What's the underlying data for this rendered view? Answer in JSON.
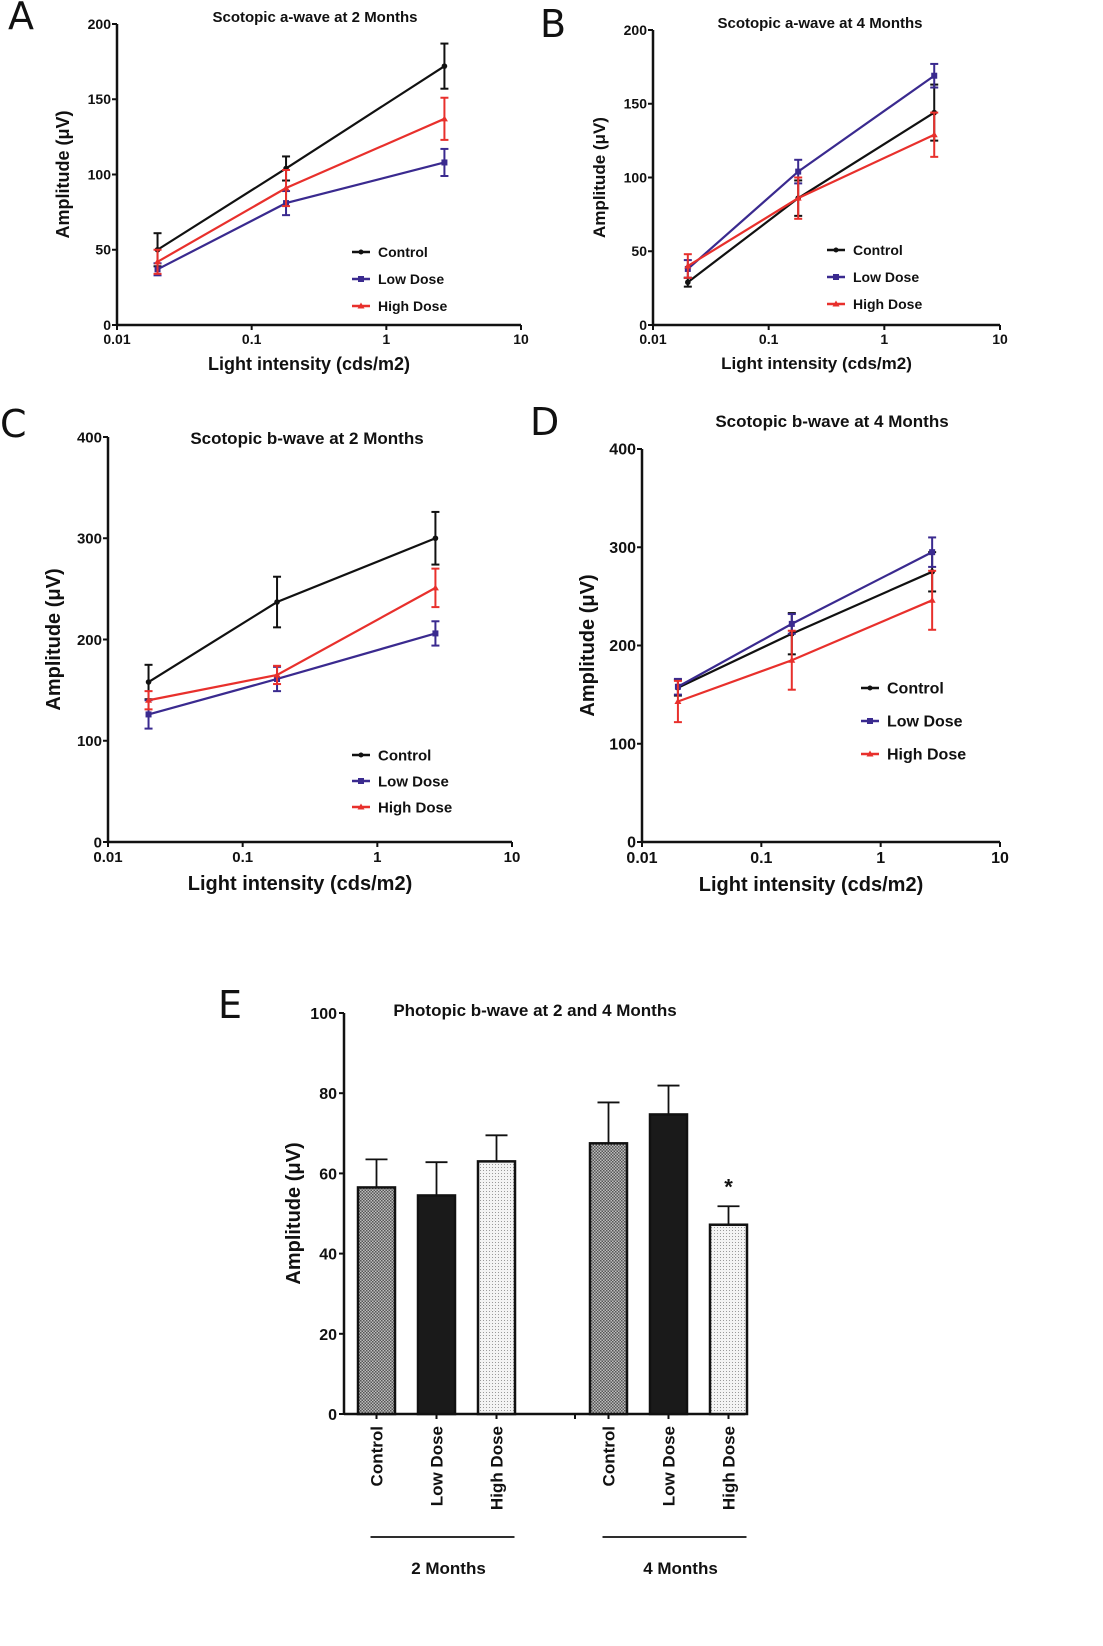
{
  "panel_letters": [
    "A",
    "B",
    "C",
    "D",
    "E"
  ],
  "colors": {
    "control": "#111111",
    "low_dose": "#3a2a8f",
    "high_dose": "#e8302c"
  },
  "chart_data": [
    {
      "id": "A",
      "type": "line",
      "title": "Scotopic a-wave at 2 Months",
      "xlabel": "Light intensity (cds/m2)",
      "ylabel": "Amplitude (μV)",
      "xscale": "log",
      "xlim": [
        0.01,
        10
      ],
      "ylim": [
        0,
        200
      ],
      "xticks": [
        "0.01",
        "0.1",
        "1",
        "10"
      ],
      "xtick_values": [
        0.01,
        0.1,
        1,
        10
      ],
      "yticks": [
        0,
        50,
        100,
        150,
        200
      ],
      "legend": "bottom-right",
      "x": [
        0.02,
        0.18,
        2.7
      ],
      "series": [
        {
          "name": "Control",
          "color_key": "control",
          "marker": "circle",
          "values": [
            50,
            104,
            172
          ],
          "errors": [
            11,
            8,
            15
          ]
        },
        {
          "name": "Low Dose",
          "color_key": "low_dose",
          "marker": "square",
          "values": [
            37,
            81,
            108
          ],
          "errors": [
            4,
            8,
            9
          ]
        },
        {
          "name": "High Dose",
          "color_key": "high_dose",
          "marker": "triangle",
          "values": [
            42,
            91,
            137
          ],
          "errors": [
            8,
            12,
            14
          ]
        }
      ]
    },
    {
      "id": "B",
      "type": "line",
      "title": "Scotopic a-wave at 4 Months",
      "xlabel": "Light intensity (cds/m2)",
      "ylabel": "Amplitude (μV)",
      "xscale": "log",
      "xlim": [
        0.01,
        10
      ],
      "ylim": [
        0,
        200
      ],
      "xticks": [
        "0.01",
        "0.1",
        "1",
        "10"
      ],
      "xtick_values": [
        0.01,
        0.1,
        1,
        10
      ],
      "yticks": [
        0,
        50,
        100,
        150,
        200
      ],
      "legend": "bottom-right",
      "x": [
        0.02,
        0.18,
        2.7
      ],
      "series": [
        {
          "name": "Control",
          "color_key": "control",
          "marker": "circle",
          "values": [
            29,
            86,
            144
          ],
          "errors": [
            3,
            12,
            19
          ]
        },
        {
          "name": "Low Dose",
          "color_key": "low_dose",
          "marker": "square",
          "values": [
            38,
            104,
            169
          ],
          "errors": [
            6,
            8,
            8
          ]
        },
        {
          "name": "High Dose",
          "color_key": "high_dose",
          "marker": "triangle",
          "values": [
            40,
            86,
            129
          ],
          "errors": [
            8,
            14,
            15
          ]
        }
      ]
    },
    {
      "id": "C",
      "type": "line",
      "title": "Scotopic b-wave at 2 Months",
      "xlabel": "Light intensity (cds/m2)",
      "ylabel": "Amplitude (μV)",
      "xscale": "log",
      "xlim": [
        0.01,
        10
      ],
      "ylim": [
        0,
        400
      ],
      "xticks": [
        "0.01",
        "0.1",
        "1",
        "10"
      ],
      "xtick_values": [
        0.01,
        0.1,
        1,
        10
      ],
      "yticks": [
        0,
        100,
        200,
        300,
        400
      ],
      "legend": "bottom-right",
      "x": [
        0.02,
        0.18,
        2.7
      ],
      "series": [
        {
          "name": "Control",
          "color_key": "control",
          "marker": "circle",
          "values": [
            158,
            237,
            300
          ],
          "errors": [
            17,
            25,
            26
          ]
        },
        {
          "name": "Low Dose",
          "color_key": "low_dose",
          "marker": "square",
          "values": [
            126,
            161,
            206
          ],
          "errors": [
            14,
            12,
            12
          ]
        },
        {
          "name": "High Dose",
          "color_key": "high_dose",
          "marker": "triangle",
          "values": [
            140,
            165,
            251
          ],
          "errors": [
            9,
            9,
            19
          ]
        }
      ]
    },
    {
      "id": "D",
      "type": "line",
      "title": "Scotopic b-wave at 4 Months",
      "xlabel": "Light intensity (cds/m2)",
      "ylabel": "Amplitude (μV)",
      "xscale": "log",
      "xlim": [
        0.01,
        10
      ],
      "ylim": [
        0,
        400
      ],
      "xticks": [
        "0.01",
        "0.1",
        "1",
        "10"
      ],
      "xtick_values": [
        0.01,
        0.1,
        1,
        10
      ],
      "yticks": [
        0,
        100,
        200,
        300,
        400
      ],
      "legend": "center-right",
      "x": [
        0.02,
        0.18,
        2.7
      ],
      "series": [
        {
          "name": "Control",
          "color_key": "control",
          "marker": "circle",
          "values": [
            157,
            212,
            275
          ],
          "errors": [
            8,
            21,
            20
          ]
        },
        {
          "name": "Low Dose",
          "color_key": "low_dose",
          "marker": "square",
          "values": [
            158,
            222,
            295
          ],
          "errors": [
            8,
            10,
            15
          ]
        },
        {
          "name": "High Dose",
          "color_key": "high_dose",
          "marker": "triangle",
          "values": [
            143,
            185,
            246
          ],
          "errors": [
            21,
            30,
            30
          ]
        }
      ]
    },
    {
      "id": "E",
      "type": "bar",
      "title": "Photopic b-wave at 2 and 4 Months",
      "ylabel": "Amplitude (μV)",
      "ylim": [
        0,
        100
      ],
      "yticks": [
        0,
        20,
        40,
        60,
        80,
        100
      ],
      "groups": [
        {
          "name": "2 Months",
          "bars": [
            {
              "category": "Control",
              "fill": "crosshatch",
              "value": 56.5,
              "error": 7.0,
              "annotation": ""
            },
            {
              "category": "Low Dose",
              "fill": "solid-black",
              "value": 54.5,
              "error": 8.3,
              "annotation": ""
            },
            {
              "category": "High Dose",
              "fill": "light-dots",
              "value": 63.0,
              "error": 6.5,
              "annotation": ""
            }
          ]
        },
        {
          "name": "4 Months",
          "bars": [
            {
              "category": "Control",
              "fill": "crosshatch",
              "value": 67.5,
              "error": 10.2,
              "annotation": ""
            },
            {
              "category": "Low Dose",
              "fill": "solid-black",
              "value": 74.7,
              "error": 7.2,
              "annotation": ""
            },
            {
              "category": "High Dose",
              "fill": "light-dots",
              "value": 47.2,
              "error": 4.6,
              "annotation": "*"
            }
          ]
        }
      ]
    }
  ]
}
